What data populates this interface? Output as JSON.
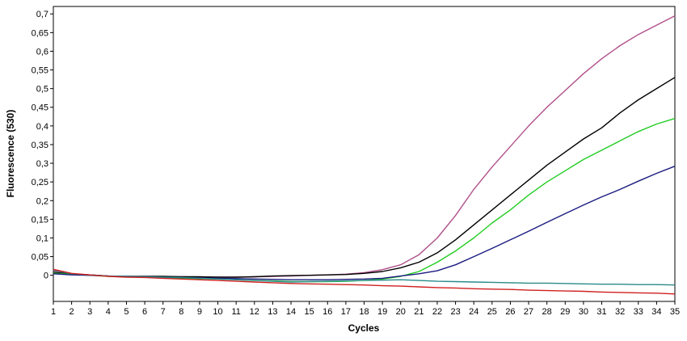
{
  "chart_data": {
    "type": "line",
    "title": "",
    "xlabel": "Cycles",
    "ylabel": "Fluorescence (530)",
    "xlim": [
      1,
      35
    ],
    "ylim": [
      -0.07,
      0.72
    ],
    "x_ticks": [
      "1",
      "2",
      "3",
      "4",
      "5",
      "6",
      "7",
      "8",
      "9",
      "10",
      "11",
      "12",
      "13",
      "14",
      "15",
      "16",
      "17",
      "18",
      "19",
      "20",
      "21",
      "22",
      "23",
      "24",
      "25",
      "26",
      "27",
      "28",
      "29",
      "30",
      "31",
      "32",
      "33",
      "34",
      "35"
    ],
    "y_ticks": [
      {
        "value": 0,
        "label": "0"
      },
      {
        "value": 0.05,
        "label": "0,05"
      },
      {
        "value": 0.1,
        "label": "0,1"
      },
      {
        "value": 0.15,
        "label": "0,15"
      },
      {
        "value": 0.2,
        "label": "0,2"
      },
      {
        "value": 0.25,
        "label": "0,25"
      },
      {
        "value": 0.3,
        "label": "0,3"
      },
      {
        "value": 0.35,
        "label": "0,35"
      },
      {
        "value": 0.4,
        "label": "0,4"
      },
      {
        "value": 0.45,
        "label": "0,45"
      },
      {
        "value": 0.5,
        "label": "0,5"
      },
      {
        "value": 0.55,
        "label": "0,55"
      },
      {
        "value": 0.6,
        "label": "0,6"
      },
      {
        "value": 0.65,
        "label": "0,65"
      },
      {
        "value": 0.7,
        "label": "0,7"
      }
    ],
    "grid": false,
    "legend": "none",
    "x": [
      1,
      2,
      3,
      4,
      5,
      6,
      7,
      8,
      9,
      10,
      11,
      12,
      13,
      14,
      15,
      16,
      17,
      18,
      19,
      20,
      21,
      22,
      23,
      24,
      25,
      26,
      27,
      28,
      29,
      30,
      31,
      32,
      33,
      34,
      35
    ],
    "series": [
      {
        "color": "#b0508a",
        "values": [
          0.012,
          0.003,
          0.001,
          -0.002,
          -0.003,
          -0.003,
          -0.004,
          -0.004,
          -0.005,
          -0.005,
          -0.005,
          -0.004,
          -0.003,
          -0.002,
          0.0,
          0.001,
          0.003,
          0.007,
          0.015,
          0.028,
          0.055,
          0.1,
          0.16,
          0.23,
          0.29,
          0.345,
          0.4,
          0.45,
          0.495,
          0.54,
          0.58,
          0.615,
          0.645,
          0.67,
          0.695
        ]
      },
      {
        "color": "#000000",
        "values": [
          0.008,
          0.003,
          0.001,
          -0.002,
          -0.003,
          -0.003,
          -0.003,
          -0.004,
          -0.004,
          -0.005,
          -0.005,
          -0.004,
          -0.002,
          -0.001,
          0.0,
          0.001,
          0.002,
          0.005,
          0.01,
          0.02,
          0.035,
          0.06,
          0.095,
          0.135,
          0.175,
          0.215,
          0.255,
          0.295,
          0.33,
          0.365,
          0.395,
          0.435,
          0.47,
          0.5,
          0.53
        ]
      },
      {
        "color": "#22cc22",
        "values": [
          0.006,
          0.002,
          0.0,
          -0.003,
          -0.004,
          -0.005,
          -0.006,
          -0.008,
          -0.009,
          -0.01,
          -0.012,
          -0.014,
          -0.015,
          -0.017,
          -0.017,
          -0.017,
          -0.016,
          -0.014,
          -0.01,
          -0.003,
          0.01,
          0.035,
          0.065,
          0.1,
          0.14,
          0.175,
          0.215,
          0.25,
          0.28,
          0.31,
          0.335,
          0.36,
          0.385,
          0.405,
          0.42
        ]
      },
      {
        "color": "#1a1a80",
        "values": [
          0.004,
          0.001,
          0.0,
          -0.002,
          -0.003,
          -0.004,
          -0.005,
          -0.006,
          -0.007,
          -0.008,
          -0.009,
          -0.01,
          -0.011,
          -0.012,
          -0.012,
          -0.012,
          -0.011,
          -0.01,
          -0.008,
          -0.002,
          0.004,
          0.012,
          0.028,
          0.05,
          0.072,
          0.095,
          0.118,
          0.142,
          0.165,
          0.188,
          0.21,
          0.23,
          0.252,
          0.273,
          0.292
        ]
      },
      {
        "color": "#2a8a8a",
        "values": [
          0.014,
          0.004,
          0.001,
          -0.002,
          -0.003,
          -0.004,
          -0.005,
          -0.006,
          -0.008,
          -0.01,
          -0.012,
          -0.014,
          -0.016,
          -0.018,
          -0.017,
          -0.016,
          -0.015,
          -0.014,
          -0.013,
          -0.012,
          -0.014,
          -0.016,
          -0.017,
          -0.018,
          -0.019,
          -0.02,
          -0.021,
          -0.021,
          -0.022,
          -0.023,
          -0.024,
          -0.024,
          -0.025,
          -0.025,
          -0.026
        ]
      },
      {
        "color": "#d02020",
        "values": [
          0.016,
          0.005,
          0.001,
          -0.003,
          -0.005,
          -0.006,
          -0.008,
          -0.01,
          -0.012,
          -0.014,
          -0.016,
          -0.018,
          -0.02,
          -0.022,
          -0.023,
          -0.024,
          -0.025,
          -0.026,
          -0.028,
          -0.029,
          -0.031,
          -0.033,
          -0.034,
          -0.036,
          -0.037,
          -0.038,
          -0.04,
          -0.041,
          -0.042,
          -0.043,
          -0.045,
          -0.046,
          -0.047,
          -0.048,
          -0.05
        ]
      }
    ]
  }
}
